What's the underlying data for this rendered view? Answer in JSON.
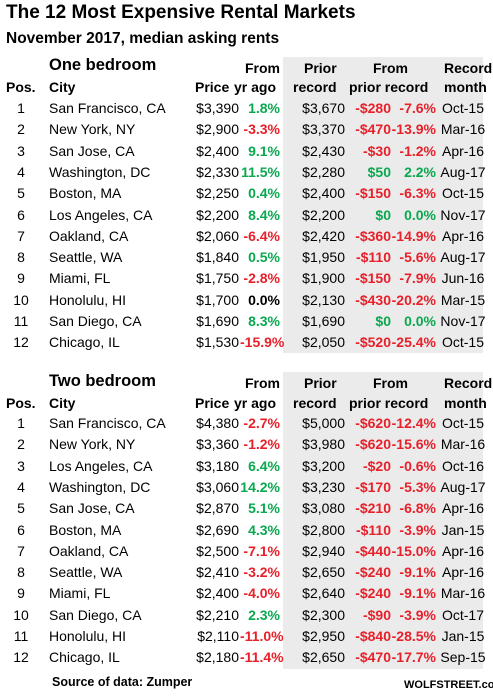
{
  "title": "The 12 Most Expensive Rental Markets",
  "subtitle": "November 2017, median asking rents",
  "headers": {
    "pos": "Pos.",
    "city": "City",
    "price": "Price",
    "from_top": "From",
    "yr_ago": "yr ago",
    "prior_top": "Prior",
    "prior_bottom": "record",
    "from_prior_top": "From",
    "from_prior_bottom": "prior record",
    "record_top": "Record",
    "record_bottom": "month"
  },
  "one_bedroom": {
    "label": "One bedroom",
    "rows": [
      {
        "pos": "1",
        "city": "San Francisco, CA",
        "price": "$3,390",
        "yr": "1.8%",
        "prior": "$3,670",
        "chg": "-$280",
        "pct": "-7.6%",
        "month": "Oct-15"
      },
      {
        "pos": "2",
        "city": "New York, NY",
        "price": "$2,900",
        "yr": "-3.3%",
        "prior": "$3,370",
        "chg": "-$470",
        "pct": "-13.9%",
        "month": "Mar-16"
      },
      {
        "pos": "3",
        "city": "San Jose, CA",
        "price": "$2,400",
        "yr": "9.1%",
        "prior": "$2,430",
        "chg": "-$30",
        "pct": "-1.2%",
        "month": "Apr-16"
      },
      {
        "pos": "4",
        "city": "Washington, DC",
        "price": "$2,330",
        "yr": "11.5%",
        "prior": "$2,280",
        "chg": "$50",
        "pct": "2.2%",
        "month": "Aug-17"
      },
      {
        "pos": "5",
        "city": "Boston, MA",
        "price": "$2,250",
        "yr": "0.4%",
        "prior": "$2,400",
        "chg": "-$150",
        "pct": "-6.3%",
        "month": "Oct-15"
      },
      {
        "pos": "6",
        "city": "Los Angeles, CA",
        "price": "$2,200",
        "yr": "8.4%",
        "prior": "$2,200",
        "chg": "$0",
        "pct": "0.0%",
        "month": "Nov-17"
      },
      {
        "pos": "7",
        "city": "Oakland, CA",
        "price": "$2,060",
        "yr": "-6.4%",
        "prior": "$2,420",
        "chg": "-$360",
        "pct": "-14.9%",
        "month": "Apr-16"
      },
      {
        "pos": "8",
        "city": "Seattle, WA",
        "price": "$1,840",
        "yr": "0.5%",
        "prior": "$1,950",
        "chg": "-$110",
        "pct": "-5.6%",
        "month": "Aug-17"
      },
      {
        "pos": "9",
        "city": "Miami, FL",
        "price": "$1,750",
        "yr": "-2.8%",
        "prior": "$1,900",
        "chg": "-$150",
        "pct": "-7.9%",
        "month": "Jun-16"
      },
      {
        "pos": "10",
        "city": "Honolulu, HI",
        "price": "$1,700",
        "yr": "0.0%",
        "prior": "$2,130",
        "chg": "-$430",
        "pct": "-20.2%",
        "month": "Mar-15"
      },
      {
        "pos": "11",
        "city": "San Diego, CA",
        "price": "$1,690",
        "yr": "8.3%",
        "prior": "$1,690",
        "chg": "$0",
        "pct": "0.0%",
        "month": "Nov-17"
      },
      {
        "pos": "12",
        "city": "Chicago, IL",
        "price": "$1,530",
        "yr": "-15.9%",
        "prior": "$2,050",
        "chg": "-$520",
        "pct": "-25.4%",
        "month": "Oct-15"
      }
    ]
  },
  "two_bedroom": {
    "label": "Two bedroom",
    "rows": [
      {
        "pos": "1",
        "city": "San Francisco, CA",
        "price": "$4,380",
        "yr": "-2.7%",
        "prior": "$5,000",
        "chg": "-$620",
        "pct": "-12.4%",
        "month": "Oct-15"
      },
      {
        "pos": "2",
        "city": "New York, NY",
        "price": "$3,360",
        "yr": "-1.2%",
        "prior": "$3,980",
        "chg": "-$620",
        "pct": "-15.6%",
        "month": "Mar-16"
      },
      {
        "pos": "3",
        "city": "Los Angeles, CA",
        "price": "$3,180",
        "yr": "6.4%",
        "prior": "$3,200",
        "chg": "-$20",
        "pct": "-0.6%",
        "month": "Oct-16"
      },
      {
        "pos": "4",
        "city": "Washington, DC",
        "price": "$3,060",
        "yr": "14.2%",
        "prior": "$3,230",
        "chg": "-$170",
        "pct": "-5.3%",
        "month": "Aug-17"
      },
      {
        "pos": "5",
        "city": "San Jose, CA",
        "price": "$2,870",
        "yr": "5.1%",
        "prior": "$3,080",
        "chg": "-$210",
        "pct": "-6.8%",
        "month": "Apr-16"
      },
      {
        "pos": "6",
        "city": "Boston, MA",
        "price": "$2,690",
        "yr": "4.3%",
        "prior": "$2,800",
        "chg": "-$110",
        "pct": "-3.9%",
        "month": "Jan-15"
      },
      {
        "pos": "7",
        "city": "Oakland, CA",
        "price": "$2,500",
        "yr": "-7.1%",
        "prior": "$2,940",
        "chg": "-$440",
        "pct": "-15.0%",
        "month": "Apr-16"
      },
      {
        "pos": "8",
        "city": "Seattle, WA",
        "price": "$2,410",
        "yr": "-3.2%",
        "prior": "$2,650",
        "chg": "-$240",
        "pct": "-9.1%",
        "month": "Apr-16"
      },
      {
        "pos": "9",
        "city": "Miami, FL",
        "price": "$2,400",
        "yr": "-4.0%",
        "prior": "$2,640",
        "chg": "-$240",
        "pct": "-9.1%",
        "month": "Mar-16"
      },
      {
        "pos": "10",
        "city": "San Diego, CA",
        "price": "$2,210",
        "yr": "2.3%",
        "prior": "$2,300",
        "chg": "-$90",
        "pct": "-3.9%",
        "month": "Oct-17"
      },
      {
        "pos": "11",
        "city": "Honolulu, HI",
        "price": "$2,110",
        "yr": "-11.0%",
        "prior": "$2,950",
        "chg": "-$840",
        "pct": "-28.5%",
        "month": "Jan-15"
      },
      {
        "pos": "12",
        "city": "Chicago, IL",
        "price": "$2,180",
        "yr": "-11.4%",
        "prior": "$2,650",
        "chg": "-$470",
        "pct": "-17.7%",
        "month": "Sep-15"
      }
    ]
  },
  "source": "Source of data: Zumper",
  "brand": "WOLFSTREET.com",
  "colors": {
    "positive": "#0aa84f",
    "negative": "#e8202a",
    "shade": "#ebebeb"
  }
}
